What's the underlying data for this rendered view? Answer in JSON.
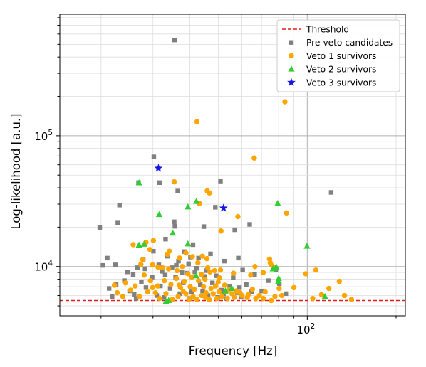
{
  "chart_data": {
    "type": "scatter",
    "xlabel": "Frequency [Hz]",
    "ylabel": "Log-likelihood [a.u.]",
    "xscale": "log",
    "yscale": "log",
    "xlim": [
      14.5,
      215
    ],
    "ylim": [
      4200,
      850000
    ],
    "grid": true,
    "legend_position": "top-right",
    "x_tick_labels": [
      {
        "value": 100,
        "label": "10^2"
      }
    ],
    "y_tick_labels": [
      {
        "value": 10000,
        "label": "10^4"
      },
      {
        "value": 100000,
        "label": "10^5"
      }
    ],
    "threshold": {
      "name": "Threshold",
      "y": 5500,
      "color": "#e41a1c"
    },
    "series": [
      {
        "name": "Pre-veto candidates",
        "marker": "square",
        "color": "#808080",
        "points": [
          [
            35.5,
            540000
          ],
          [
            30.2,
            69000
          ],
          [
            31.6,
            43800
          ],
          [
            26.8,
            43800
          ],
          [
            19.8,
            19900
          ],
          [
            23.1,
            29500
          ],
          [
            22.8,
            21500
          ],
          [
            21.0,
            11600
          ],
          [
            20.3,
            10200
          ],
          [
            22.4,
            10300
          ],
          [
            24.6,
            9100
          ],
          [
            25.7,
            8700
          ],
          [
            26.6,
            9800
          ],
          [
            27.8,
            11400
          ],
          [
            28.2,
            9600
          ],
          [
            30.1,
            13100
          ],
          [
            31.4,
            10300
          ],
          [
            32.2,
            9200
          ],
          [
            33.1,
            16200
          ],
          [
            33.6,
            12000
          ],
          [
            35.4,
            22000
          ],
          [
            35.6,
            20300
          ],
          [
            36.4,
            37800
          ],
          [
            36.6,
            11000
          ],
          [
            36.0,
            10200
          ],
          [
            38.4,
            13000
          ],
          [
            39.6,
            10500
          ],
          [
            40.2,
            11800
          ],
          [
            41.0,
            14700
          ],
          [
            42.2,
            9700
          ],
          [
            44.6,
            20200
          ],
          [
            47.0,
            12500
          ],
          [
            48.8,
            28400
          ],
          [
            50.8,
            45000
          ],
          [
            52.3,
            11000
          ],
          [
            56.8,
            19100
          ],
          [
            58.4,
            11600
          ],
          [
            60.4,
            9400
          ],
          [
            63.8,
            21000
          ],
          [
            66.3,
            8700
          ],
          [
            64.7,
            6400
          ],
          [
            70.1,
            6500
          ],
          [
            73.8,
            7800
          ],
          [
            78.2,
            9400
          ],
          [
            80.4,
            7400
          ],
          [
            84.6,
            6200
          ],
          [
            120.5,
            36900
          ],
          [
            21.3,
            6800
          ],
          [
            22.5,
            7300
          ],
          [
            24.0,
            7800
          ],
          [
            25.0,
            6500
          ],
          [
            25.9,
            6100
          ],
          [
            27.4,
            7600
          ],
          [
            28.4,
            6900
          ],
          [
            29.8,
            8300
          ],
          [
            30.9,
            6000
          ],
          [
            31.8,
            7100
          ],
          [
            33.0,
            8600
          ],
          [
            34.3,
            6800
          ],
          [
            35.8,
            8300
          ],
          [
            37.0,
            6200
          ],
          [
            38.0,
            7500
          ],
          [
            39.2,
            8900
          ],
          [
            40.6,
            6400
          ],
          [
            41.6,
            9100
          ],
          [
            43.4,
            7300
          ],
          [
            44.9,
            8400
          ],
          [
            46.1,
            6000
          ],
          [
            47.7,
            7500
          ],
          [
            49.7,
            5800
          ],
          [
            51.2,
            6600
          ],
          [
            53.1,
            5700
          ],
          [
            54.6,
            7000
          ],
          [
            56.1,
            8200
          ],
          [
            57.9,
            6300
          ],
          [
            59.7,
            5900
          ],
          [
            62.1,
            7300
          ],
          [
            34.8,
            9800
          ],
          [
            37.6,
            9000
          ],
          [
            45.6,
            9300
          ],
          [
            42.8,
            11600
          ],
          [
            49.1,
            8500
          ],
          [
            21.8,
            5900
          ],
          [
            26.3,
            5700
          ],
          [
            32.7,
            5800
          ],
          [
            39.9,
            5700
          ],
          [
            44.2,
            6500
          ],
          [
            52.0,
            6200
          ],
          [
            58.9,
            6900
          ]
        ]
      },
      {
        "name": "Veto 1 survivors",
        "marker": "circle",
        "color": "#ffa500",
        "points": [
          [
            84.0,
            182000
          ],
          [
            42.3,
            128000
          ],
          [
            66.1,
            67500
          ],
          [
            35.4,
            44500
          ],
          [
            45.8,
            37900
          ],
          [
            46.6,
            36500
          ],
          [
            43.1,
            30400
          ],
          [
            58.2,
            24100
          ],
          [
            85.0,
            25700
          ],
          [
            51.0,
            18700
          ],
          [
            30.1,
            15800
          ],
          [
            28.4,
            15300
          ],
          [
            25.7,
            14700
          ],
          [
            29.3,
            13500
          ],
          [
            33.6,
            12400
          ],
          [
            34.1,
            13100
          ],
          [
            36.9,
            11600
          ],
          [
            38.8,
            12700
          ],
          [
            40.8,
            11900
          ],
          [
            42.6,
            10700
          ],
          [
            44.1,
            12000
          ],
          [
            45.7,
            11500
          ],
          [
            27.7,
            11300
          ],
          [
            29.9,
            10300
          ],
          [
            32.3,
            9800
          ],
          [
            27.3,
            10400
          ],
          [
            31.2,
            9900
          ],
          [
            33.9,
            9600
          ],
          [
            36.2,
            9300
          ],
          [
            37.7,
            10000
          ],
          [
            39.4,
            8800
          ],
          [
            43.8,
            8700
          ],
          [
            46.8,
            9100
          ],
          [
            48.5,
            9300
          ],
          [
            50.8,
            9400
          ],
          [
            56.2,
            8900
          ],
          [
            64.3,
            8600
          ],
          [
            66.5,
            10000
          ],
          [
            70.9,
            9000
          ],
          [
            74.5,
            11400
          ],
          [
            74.9,
            10700
          ],
          [
            75.4,
            10300
          ],
          [
            77.3,
            9900
          ],
          [
            80.3,
            6800
          ],
          [
            90.1,
            6900
          ],
          [
            98.8,
            8800
          ],
          [
            107.0,
            9400
          ],
          [
            111.8,
            6100
          ],
          [
            118.4,
            6800
          ],
          [
            128.4,
            7700
          ],
          [
            141.2,
            5600
          ],
          [
            133.7,
            6000
          ],
          [
            104.4,
            5700
          ],
          [
            28.0,
            8600
          ],
          [
            29.4,
            7800
          ],
          [
            31.1,
            7100
          ],
          [
            32.8,
            7800
          ],
          [
            34.5,
            7300
          ],
          [
            36.0,
            8100
          ],
          [
            37.2,
            6900
          ],
          [
            38.3,
            7700
          ],
          [
            40.1,
            7000
          ],
          [
            41.4,
            6700
          ],
          [
            42.8,
            7800
          ],
          [
            44.5,
            7000
          ],
          [
            45.4,
            6300
          ],
          [
            47.2,
            6800
          ],
          [
            48.9,
            7100
          ],
          [
            50.2,
            6400
          ],
          [
            52.5,
            7200
          ],
          [
            54.3,
            6700
          ],
          [
            55.6,
            6200
          ],
          [
            57.4,
            6500
          ],
          [
            60.1,
            6000
          ],
          [
            62.6,
            5800
          ],
          [
            65.2,
            6700
          ],
          [
            68.8,
            6000
          ],
          [
            72.0,
            6400
          ],
          [
            77.7,
            5900
          ],
          [
            82.0,
            6000
          ],
          [
            22.2,
            7200
          ],
          [
            22.7,
            6300
          ],
          [
            23.7,
            5900
          ],
          [
            24.2,
            7500
          ],
          [
            25.2,
            6600
          ],
          [
            26.1,
            7100
          ],
          [
            27.0,
            5900
          ],
          [
            28.8,
            6400
          ],
          [
            29.9,
            6900
          ],
          [
            30.6,
            6300
          ],
          [
            31.6,
            5700
          ],
          [
            33.2,
            6200
          ],
          [
            34.9,
            5600
          ],
          [
            36.5,
            5900
          ],
          [
            38.8,
            6200
          ],
          [
            39.7,
            5600
          ],
          [
            41.0,
            5900
          ],
          [
            42.3,
            5600
          ],
          [
            43.9,
            6000
          ],
          [
            45.2,
            5800
          ],
          [
            46.5,
            5600
          ],
          [
            48.0,
            6200
          ],
          [
            49.4,
            5700
          ],
          [
            51.4,
            5900
          ],
          [
            53.6,
            5700
          ],
          [
            56.6,
            5800
          ],
          [
            59.2,
            6300
          ],
          [
            63.1,
            6100
          ],
          [
            66.9,
            5700
          ],
          [
            71.0,
            5700
          ],
          [
            75.5,
            5500
          ],
          [
            40.6,
            8300
          ],
          [
            45.0,
            8000
          ],
          [
            49.9,
            7600
          ],
          [
            46.0,
            9800
          ],
          [
            50.4,
            8200
          ],
          [
            36.8,
            7200
          ],
          [
            38.0,
            6400
          ],
          [
            53.0,
            6400
          ]
        ]
      },
      {
        "name": "Veto 2 survivors",
        "marker": "triangle",
        "color": "#33cc33",
        "points": [
          [
            26.9,
            43700
          ],
          [
            31.5,
            25000
          ],
          [
            39.4,
            28600
          ],
          [
            42.1,
            31500
          ],
          [
            79.4,
            30400
          ],
          [
            35.0,
            18000
          ],
          [
            39.4,
            14900
          ],
          [
            28.0,
            14800
          ],
          [
            26.9,
            14600
          ],
          [
            99.8,
            14300
          ],
          [
            78.5,
            9900
          ],
          [
            80.0,
            8100
          ],
          [
            76.5,
            9600
          ],
          [
            79.8,
            7700
          ],
          [
            42.0,
            8500
          ],
          [
            52.8,
            6500
          ],
          [
            55.5,
            6800
          ],
          [
            114.8,
            5900
          ],
          [
            33.9,
            5500
          ],
          [
            33.2,
            5400
          ]
        ]
      },
      {
        "name": "Veto 3 survivors",
        "marker": "star",
        "color": "#1515e6",
        "points": [
          [
            31.3,
            56500
          ],
          [
            52.0,
            28000
          ]
        ]
      }
    ]
  }
}
